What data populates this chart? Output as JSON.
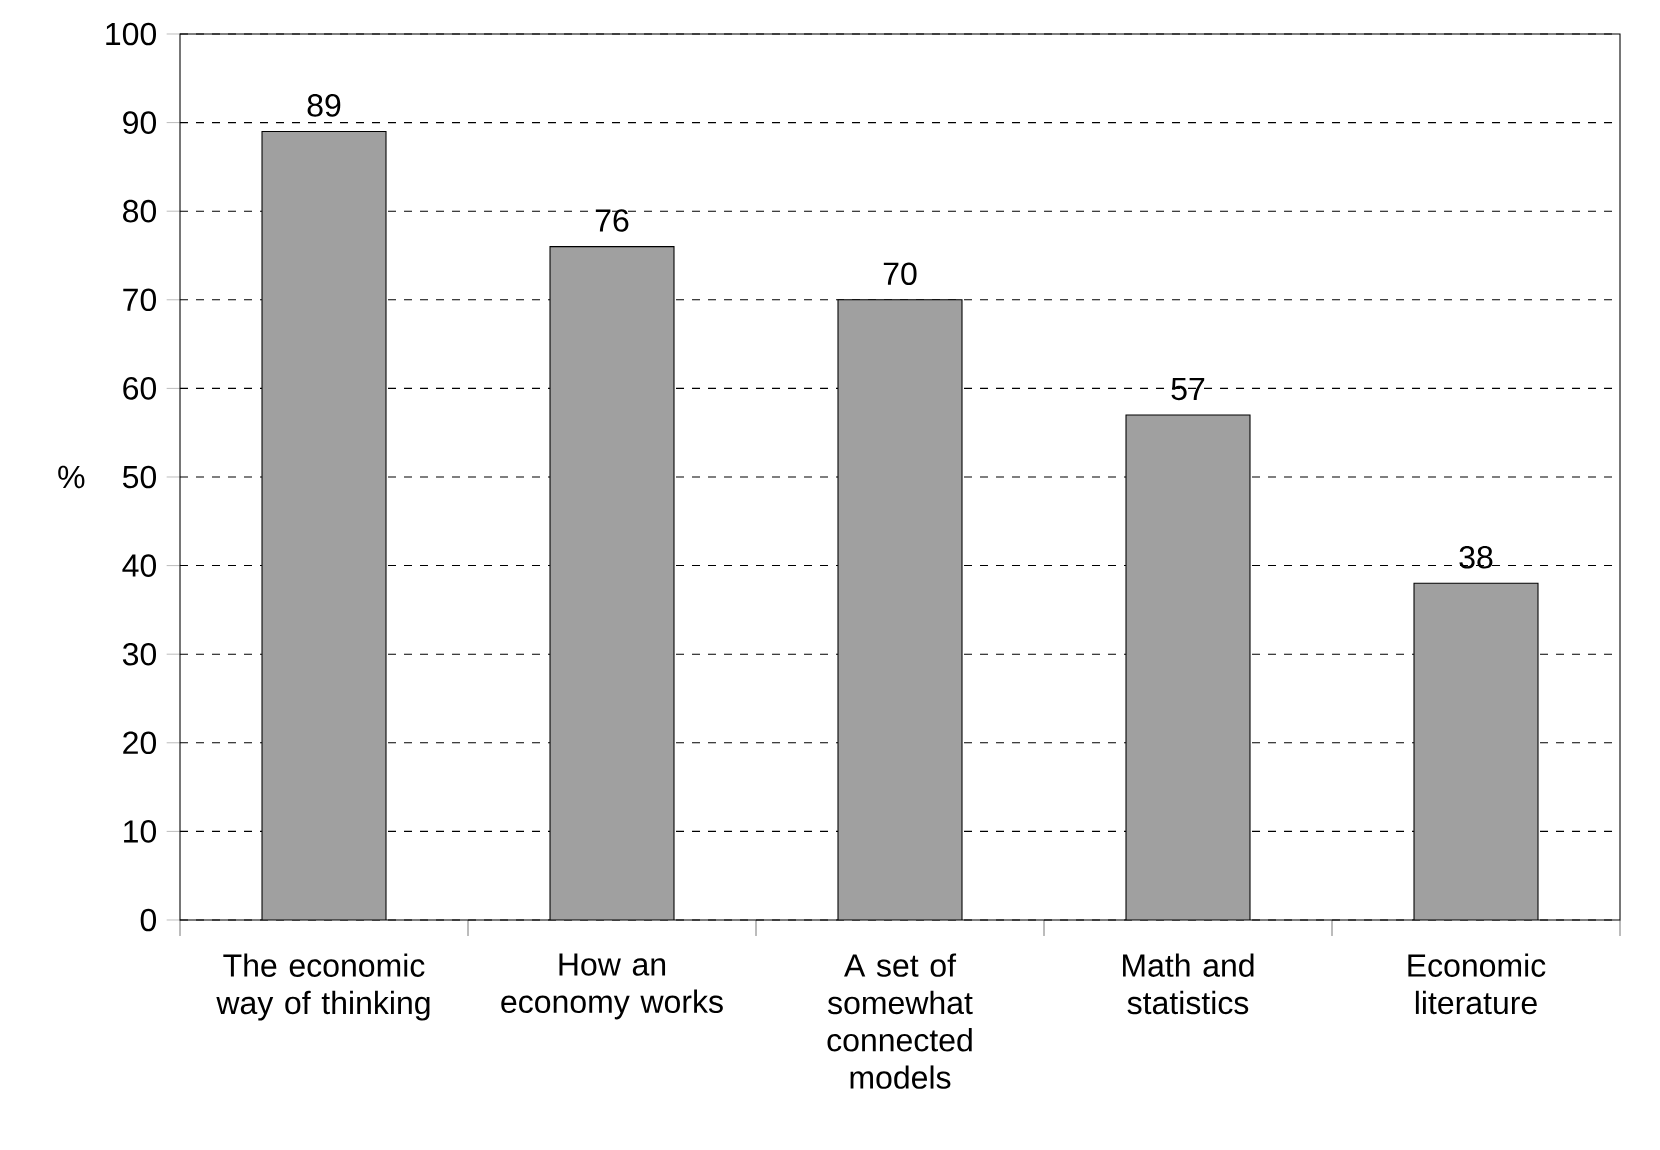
{
  "chart_data": {
    "type": "bar",
    "ylabel": "%",
    "categories": [
      "The economic way of thinking",
      "How an economy works",
      "A set of somewhat connected models",
      "Math and statistics",
      "Economic literature"
    ],
    "values": [
      89,
      76,
      70,
      57,
      38
    ],
    "color": "#a0a0a0",
    "ylim": [
      0,
      100
    ],
    "yticks": [
      0,
      10,
      20,
      30,
      40,
      50,
      60,
      70,
      80,
      90,
      100
    ],
    "grid": "y",
    "data_labels": true
  }
}
